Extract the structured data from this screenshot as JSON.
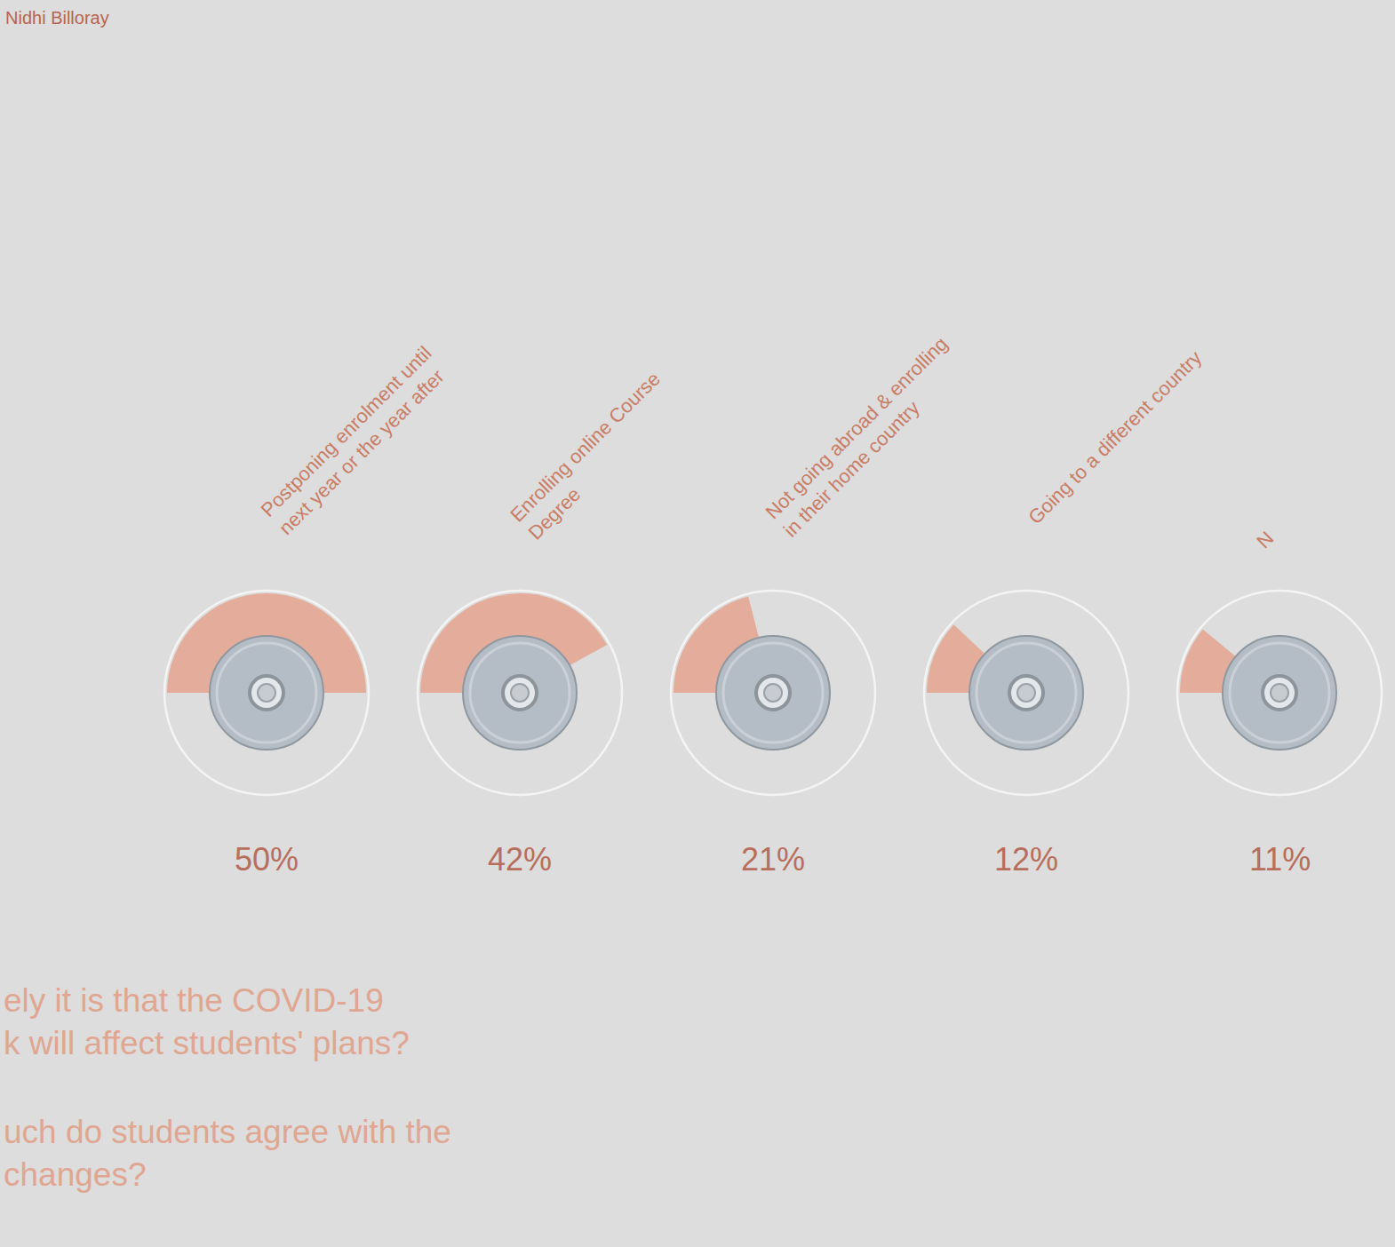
{
  "chart_data": {
    "type": "pie",
    "author": "Nidhi Billoray",
    "categories": [
      "Postponing enrolment until\nnext year or the year after",
      "Enrolling online Course\nDegree",
      "Not going abroad & enrolling\nin their home country",
      "Going to a different country",
      "N"
    ],
    "values": [
      50,
      42,
      21,
      12,
      11
    ],
    "value_labels": [
      "50%",
      "42%",
      "21%",
      "12%",
      "11%"
    ],
    "color": "#e4ad9b",
    "data_labels": true,
    "annotations": [
      "ely it is that the COVID-19\nk will affect students' plans?",
      "uch do students agree with the\nchanges?"
    ]
  }
}
